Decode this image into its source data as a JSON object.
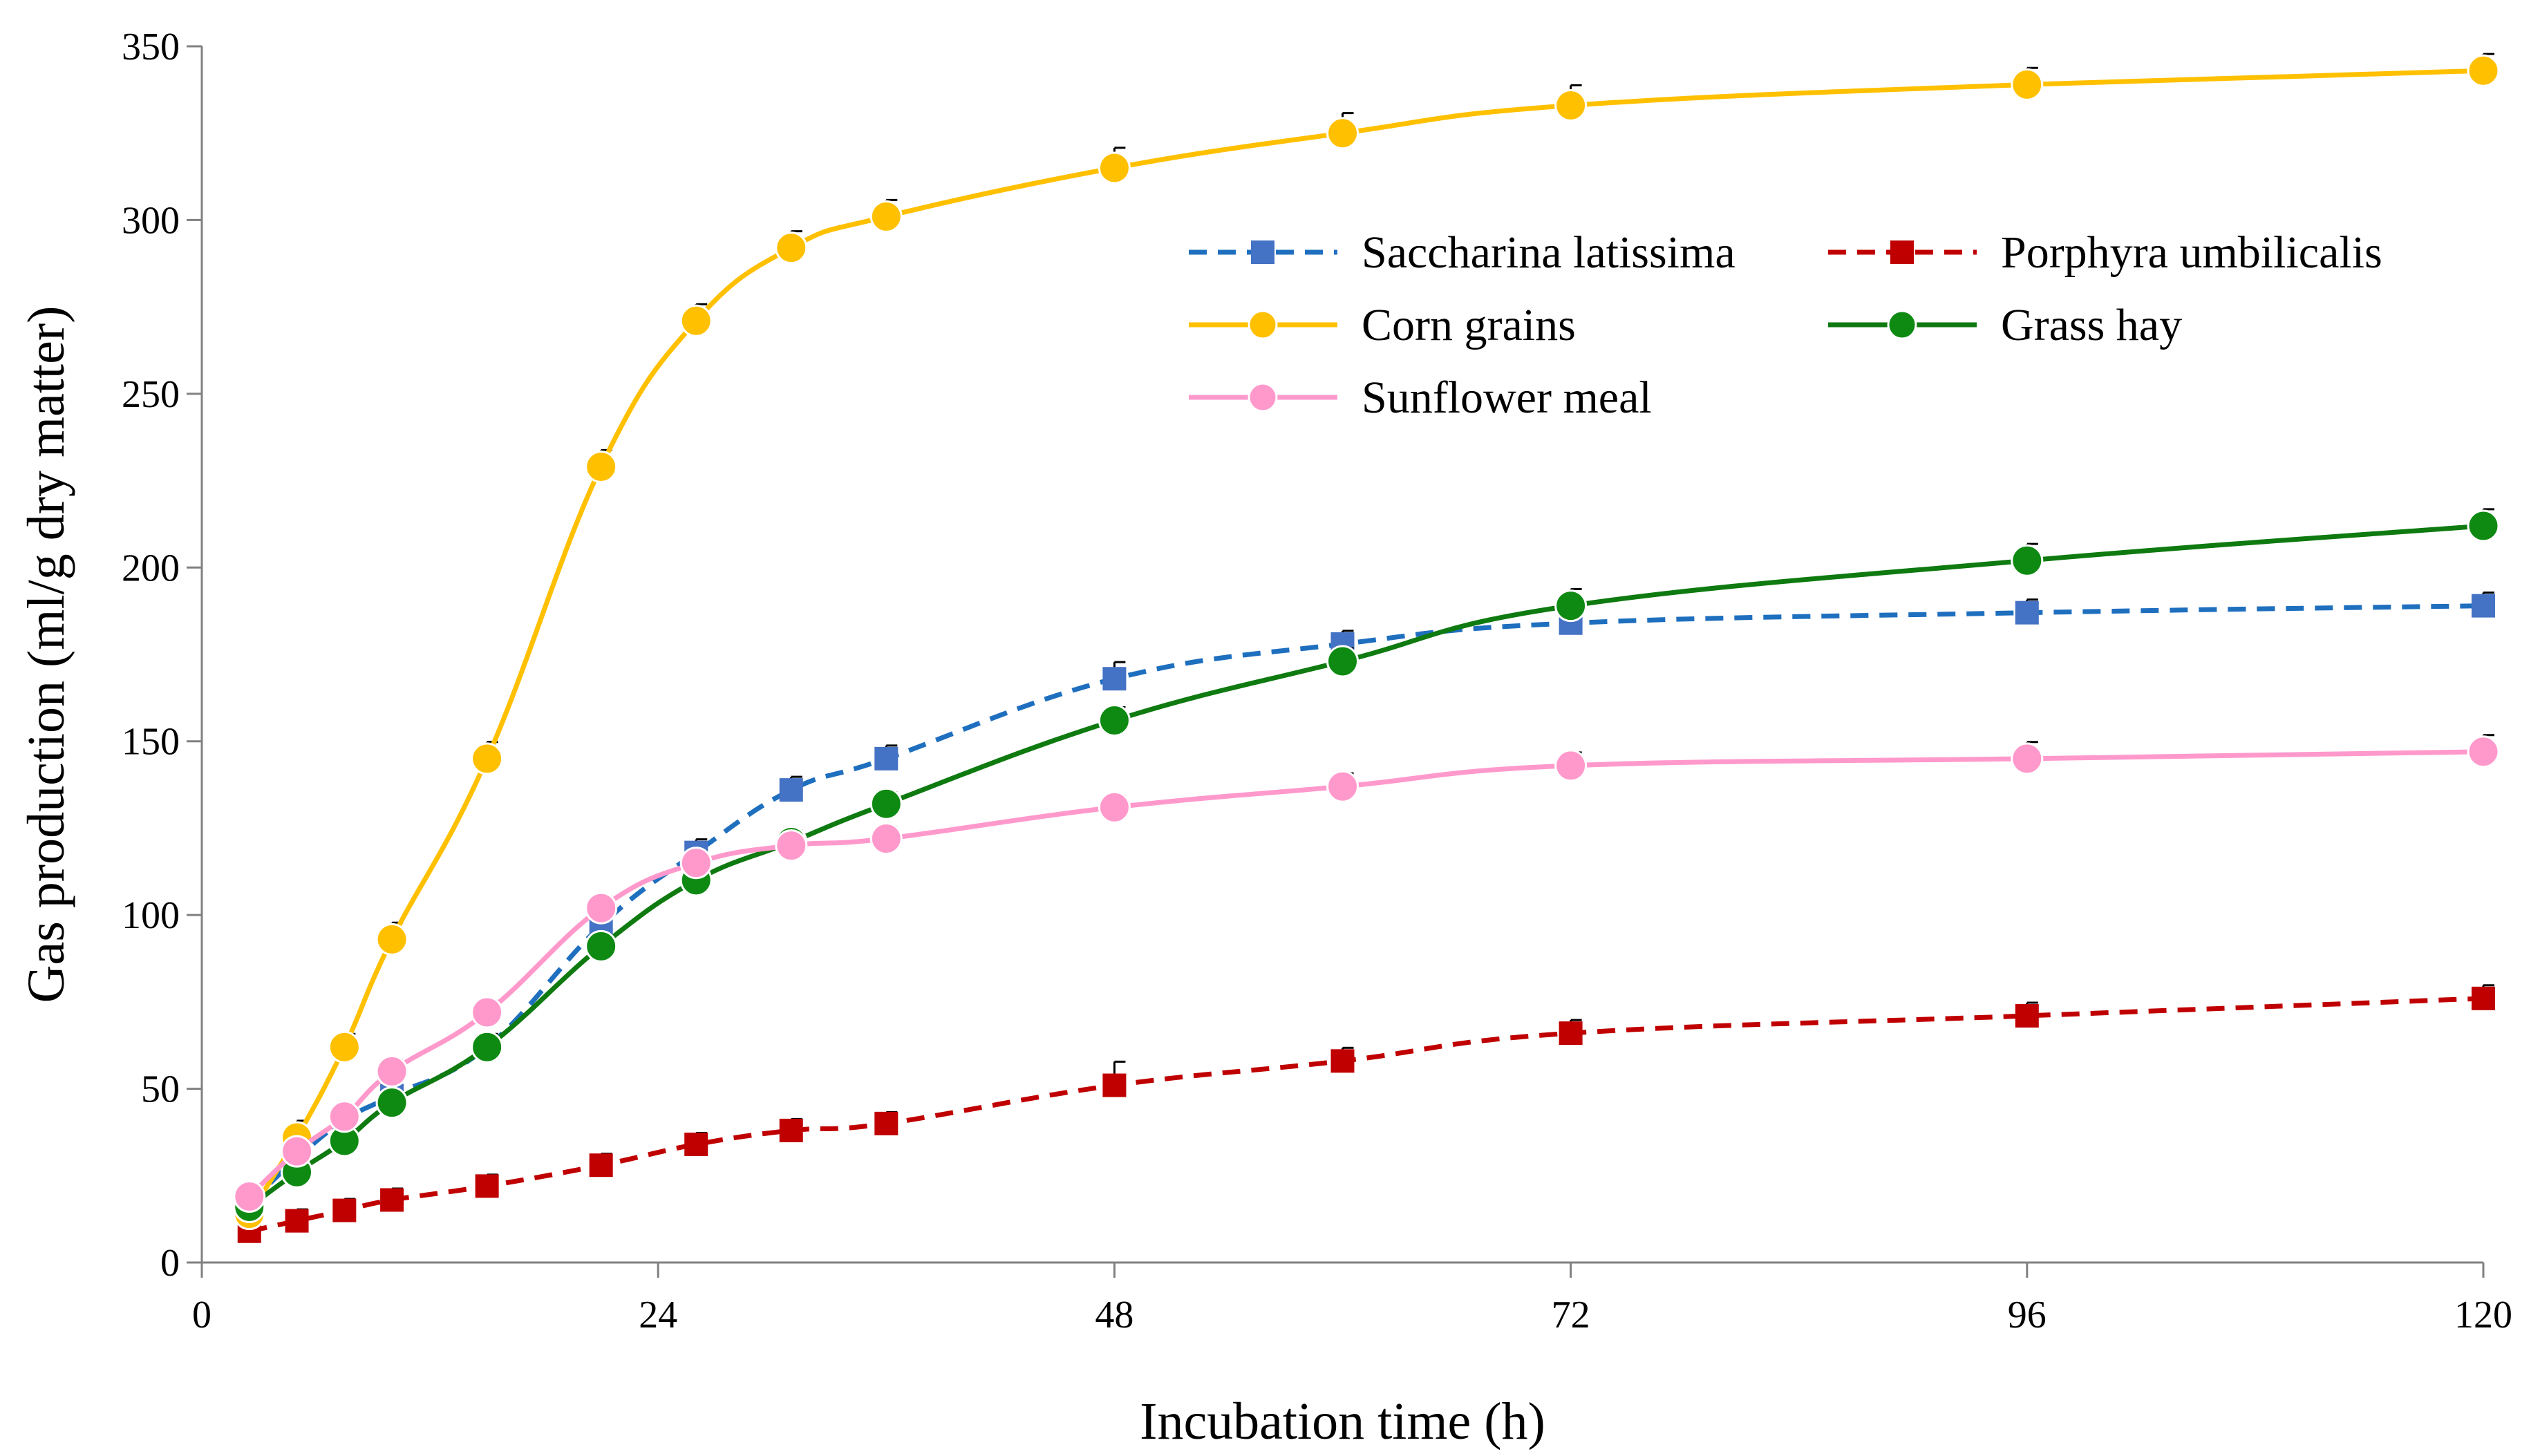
{
  "chart_data": {
    "type": "line",
    "title": "",
    "xlabel": "Incubation time (h)",
    "ylabel": "Gas production (ml/g dry matter)",
    "xlim": [
      0,
      120
    ],
    "ylim": [
      0,
      350
    ],
    "xticks": [
      0,
      24,
      48,
      72,
      96,
      120
    ],
    "yticks": [
      0,
      50,
      100,
      150,
      200,
      250,
      300,
      350
    ],
    "grid": false,
    "legend_position": "top-right",
    "x": [
      2.5,
      5,
      7.5,
      10,
      15,
      21,
      26,
      31,
      36,
      48,
      60,
      72,
      96,
      120
    ],
    "series": [
      {
        "name": "Saccharina latissima",
        "color": "#1f6fbf",
        "marker_color": "#4472c4",
        "marker": "square",
        "dashed": true,
        "values": [
          17,
          30,
          41,
          48,
          62,
          97,
          118,
          136,
          145,
          168,
          178,
          184,
          187,
          189
        ],
        "errors": [
          1,
          1,
          1,
          1,
          1,
          1,
          1,
          1,
          1,
          2,
          1,
          1,
          1,
          1
        ]
      },
      {
        "name": "Porphyra umbilicalis",
        "color": "#c00000",
        "marker_color": "#c00000",
        "marker": "square",
        "dashed": true,
        "values": [
          9,
          12,
          15,
          18,
          22,
          28,
          34,
          38,
          40,
          51,
          58,
          66,
          71,
          76
        ],
        "errors": [
          0.5,
          0.5,
          0.5,
          0.5,
          0.5,
          0.5,
          0.5,
          0.5,
          0.5,
          4,
          1,
          1,
          1,
          1
        ]
      },
      {
        "name": "Corn grains",
        "color": "#ffc000",
        "marker_color": "#ffc000",
        "marker": "circle",
        "dashed": false,
        "values": [
          14,
          36,
          62,
          93,
          145,
          229,
          271,
          292,
          301,
          315,
          325,
          333,
          339,
          343
        ],
        "errors": [
          1,
          2,
          1,
          2,
          2,
          2,
          2,
          2,
          2,
          3,
          3,
          3,
          2,
          2
        ]
      },
      {
        "name": "Grass hay",
        "color": "#0e7a10",
        "marker_color": "#0e8a12",
        "marker": "circle",
        "dashed": false,
        "values": [
          16,
          26,
          35,
          46,
          62,
          91,
          110,
          121,
          132,
          156,
          173,
          189,
          202,
          212
        ],
        "errors": [
          0.5,
          0.5,
          0.5,
          0.5,
          0.5,
          0.5,
          0.5,
          0.5,
          0.5,
          1,
          1,
          2,
          2,
          2
        ]
      },
      {
        "name": "Sunflower meal",
        "color": "#ff99cc",
        "marker_color": "#ff99cc",
        "marker": "circle",
        "dashed": false,
        "values": [
          19,
          32,
          42,
          55,
          72,
          102,
          115,
          120,
          122,
          131,
          137,
          143,
          145,
          147
        ],
        "errors": [
          0.5,
          0.5,
          0.5,
          0.5,
          0.5,
          0.5,
          0.5,
          0.5,
          0.5,
          0.5,
          1,
          1,
          2,
          2
        ]
      }
    ]
  }
}
